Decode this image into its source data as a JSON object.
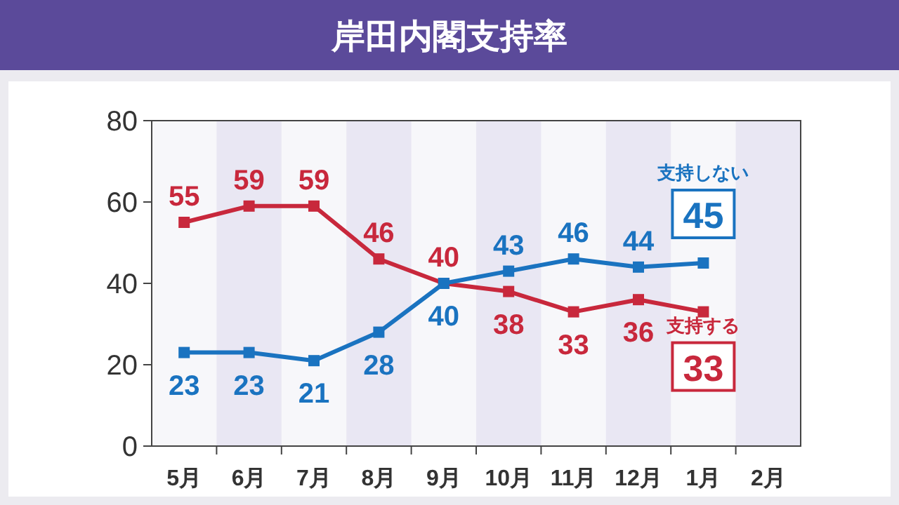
{
  "chart_data": {
    "type": "line",
    "title": "岸田内閣支持率",
    "categories": [
      "5月",
      "6月",
      "7月",
      "8月",
      "9月",
      "10月",
      "11月",
      "12月",
      "1月",
      "2月"
    ],
    "series": [
      {
        "name": "支持する",
        "color": "#c8283c",
        "values": [
          55,
          59,
          59,
          46,
          40,
          38,
          33,
          36,
          33,
          null
        ]
      },
      {
        "name": "支持しない",
        "color": "#1a73c0",
        "values": [
          23,
          23,
          21,
          28,
          40,
          43,
          46,
          44,
          45,
          null
        ]
      }
    ],
    "ylim": [
      0,
      80
    ],
    "yticks": [
      0,
      20,
      40,
      60,
      80
    ],
    "grid": false,
    "marker": "square",
    "line_style": "solid",
    "data_labels": true,
    "bands": [
      {
        "axis": "x",
        "from": "6月",
        "to": "6月",
        "color": "#e9e7f3"
      },
      {
        "axis": "x",
        "from": "8月",
        "to": "8月",
        "color": "#e9e7f3"
      },
      {
        "axis": "x",
        "from": "10月",
        "to": "10月",
        "color": "#e9e7f3"
      },
      {
        "axis": "x",
        "from": "12月",
        "to": "12月",
        "color": "#e9e7f3"
      },
      {
        "axis": "x",
        "from": "2月",
        "to": "2月",
        "color": "#e9e7f3"
      }
    ]
  }
}
